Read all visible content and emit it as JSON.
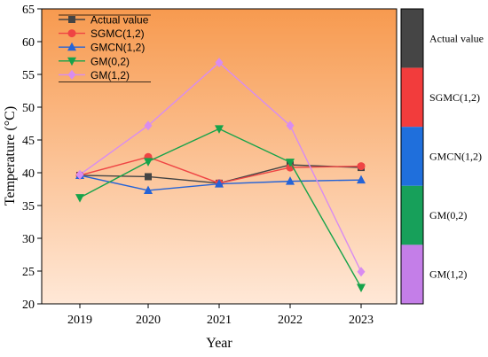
{
  "chart_data": {
    "type": "line",
    "xlabel": "Year",
    "ylabel": "Temperature (°C)",
    "x": [
      "2019",
      "2020",
      "2021",
      "2022",
      "2023"
    ],
    "ylim": [
      20,
      65
    ],
    "yticks": [
      20,
      25,
      30,
      35,
      40,
      45,
      50,
      55,
      60,
      65
    ],
    "background_gradient": [
      "#f79a4f",
      "#ffe8d7"
    ],
    "legend_position": "top-left",
    "series": [
      {
        "name": "Actual value",
        "color": "#444444",
        "marker": "square",
        "values": [
          39.6,
          39.4,
          38.4,
          41.2,
          40.8
        ]
      },
      {
        "name": "SGMC(1,2)",
        "color": "#ef4444",
        "marker": "circle",
        "values": [
          39.6,
          42.4,
          38.4,
          40.8,
          41.0
        ]
      },
      {
        "name": "GMCN(1,2)",
        "color": "#2563d6",
        "marker": "triangle-up",
        "values": [
          39.6,
          37.3,
          38.3,
          38.7,
          38.9
        ]
      },
      {
        "name": "GM(0,2)",
        "color": "#16a34a",
        "marker": "triangle-down",
        "values": [
          36.2,
          41.7,
          46.7,
          41.6,
          22.5
        ]
      },
      {
        "name": "GM(1,2)",
        "color": "#d88cf0",
        "marker": "diamond",
        "values": [
          39.7,
          47.2,
          56.8,
          47.2,
          24.9
        ]
      }
    ],
    "colorbar": {
      "labels": [
        "Actual value",
        "SGMC(1,2)",
        "GMCN(1,2)",
        "GM(0,2)",
        "GM(1,2)"
      ],
      "colors": [
        "#454545",
        "#f23c3c",
        "#1f6fdc",
        "#17a05a",
        "#c47ee8"
      ]
    }
  }
}
